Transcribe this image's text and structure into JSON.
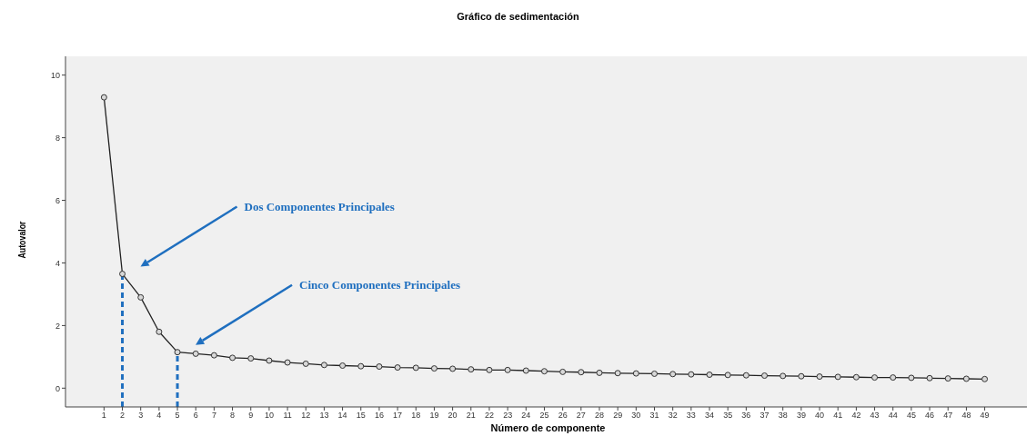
{
  "chart_data": {
    "type": "line",
    "title": "Gráfico de sedimentación",
    "xlabel": "Número de componente",
    "ylabel": "Autovalor",
    "x": [
      1,
      2,
      3,
      4,
      5,
      6,
      7,
      8,
      9,
      10,
      11,
      12,
      13,
      14,
      15,
      16,
      17,
      18,
      19,
      20,
      21,
      22,
      23,
      24,
      25,
      26,
      27,
      28,
      29,
      30,
      31,
      32,
      33,
      34,
      35,
      36,
      37,
      38,
      39,
      40,
      41,
      42,
      43,
      44,
      45,
      46,
      47,
      48,
      49
    ],
    "series": [
      {
        "color": "#222222",
        "values": [
          9.29,
          3.65,
          2.9,
          1.8,
          1.15,
          1.1,
          1.05,
          0.97,
          0.95,
          0.88,
          0.82,
          0.78,
          0.74,
          0.72,
          0.7,
          0.69,
          0.66,
          0.65,
          0.63,
          0.62,
          0.6,
          0.58,
          0.58,
          0.56,
          0.54,
          0.52,
          0.51,
          0.49,
          0.48,
          0.47,
          0.46,
          0.45,
          0.44,
          0.43,
          0.42,
          0.41,
          0.4,
          0.39,
          0.38,
          0.37,
          0.36,
          0.35,
          0.34,
          0.34,
          0.33,
          0.32,
          0.31,
          0.3,
          0.29
        ]
      }
    ],
    "xlim": [
      -1.1,
      51.3
    ],
    "xticks": [
      1,
      2,
      3,
      4,
      5,
      6,
      7,
      8,
      9,
      10,
      11,
      12,
      13,
      14,
      15,
      16,
      17,
      18,
      19,
      20,
      21,
      22,
      23,
      24,
      25,
      26,
      27,
      28,
      29,
      30,
      31,
      32,
      33,
      34,
      35,
      36,
      37,
      38,
      39,
      40,
      41,
      42,
      43,
      44,
      45,
      46,
      47,
      48,
      49
    ],
    "ylim": [
      -0.6,
      10.6
    ],
    "yticks": [
      0,
      2,
      4,
      6,
      8,
      10
    ],
    "grid": false,
    "marker": "circle",
    "line_style": "solid",
    "ref_lines": [
      {
        "axis": "x",
        "value": 2,
        "color": "#1f6fbf",
        "line_style": "dashed"
      },
      {
        "axis": "x",
        "value": 5,
        "color": "#1f6fbf",
        "line_style": "dashed"
      }
    ],
    "annotations": [
      "Dos Componentes Principales",
      "Cinco Componentes Principales"
    ]
  }
}
